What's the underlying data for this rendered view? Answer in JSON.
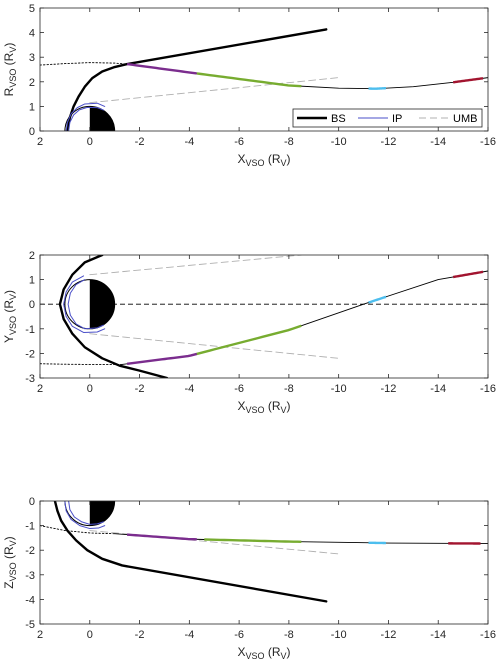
{
  "chart_data": [
    {
      "id": "panel-r",
      "type": "line",
      "xlabel": {
        "main": "X",
        "sub": "VSO",
        "unit_main": " (R",
        "unit_sub": "V",
        "close": ")"
      },
      "ylabel": {
        "main": "R",
        "sub": "VSO",
        "unit_main": " (R",
        "unit_sub": "V",
        "close": ")"
      },
      "xlim": [
        2,
        -16
      ],
      "ylim": [
        0,
        5
      ],
      "xticks": [
        2,
        0,
        -2,
        -4,
        -6,
        -8,
        -10,
        -12,
        -14,
        -16
      ],
      "yticks": [
        0,
        1,
        2,
        3,
        4,
        5
      ],
      "ytick_labels": [
        "0",
        "1",
        "2",
        "3",
        "4",
        "5"
      ],
      "planet": "upper-half",
      "legend": {
        "position": "bottom-right",
        "entries": [
          {
            "label": "BS",
            "style": "bow-shock"
          },
          {
            "label": "IP",
            "style": "ionopause"
          },
          {
            "label": "UMB",
            "style": "umb"
          }
        ]
      },
      "series": [
        {
          "role": "bow-shock",
          "points": [
            [
              0.9,
              0
            ],
            [
              0.87,
              0.2
            ],
            [
              0.8,
              0.55
            ],
            [
              0.65,
              1.0
            ],
            [
              0.45,
              1.4
            ],
            [
              0.2,
              1.8
            ],
            [
              -0.1,
              2.15
            ],
            [
              -0.5,
              2.42
            ],
            [
              -1.0,
              2.6
            ],
            [
              -1.5,
              2.72
            ],
            [
              -9.5,
              4.13
            ]
          ]
        },
        {
          "role": "bow-shock-extension",
          "points": [
            [
              2,
              2.68
            ],
            [
              1.0,
              2.74
            ],
            [
              0,
              2.78
            ],
            [
              -1.0,
              2.76
            ],
            [
              -1.5,
              2.72
            ]
          ]
        },
        {
          "role": "ionopause",
          "points": [
            [
              0.95,
              0
            ],
            [
              0.9,
              0.35
            ],
            [
              0.75,
              0.7
            ],
            [
              0.5,
              0.95
            ],
            [
              0.2,
              1.1
            ],
            [
              -0.3,
              1.13
            ],
            [
              -0.6,
              1.0
            ]
          ]
        },
        {
          "role": "ionopause-inner",
          "points": [
            [
              0.85,
              0
            ],
            [
              0.8,
              0.35
            ],
            [
              0.65,
              0.65
            ],
            [
              0.42,
              0.86
            ],
            [
              0.1,
              0.96
            ],
            [
              -0.3,
              0.95
            ],
            [
              -0.55,
              0.85
            ]
          ]
        },
        {
          "role": "umb",
          "points": [
            [
              0,
              1.15
            ],
            [
              -10,
              2.17
            ]
          ]
        },
        {
          "role": "trajectory",
          "points": [
            [
              -1.5,
              2.72
            ],
            [
              -4,
              2.38
            ],
            [
              -8,
              1.85
            ],
            [
              -10,
              1.74
            ],
            [
              -11.5,
              1.72
            ],
            [
              -13,
              1.8
            ],
            [
              -14.6,
              1.98
            ],
            [
              -16,
              2.17
            ]
          ]
        }
      ],
      "segments": [
        {
          "role": "purple",
          "color": "#7b2d8e",
          "x_range": [
            -1.5,
            -4.3
          ]
        },
        {
          "role": "green",
          "color": "#77ac30",
          "x_range": [
            -4.3,
            -8.5
          ]
        },
        {
          "role": "cyan",
          "color": "#4dbeee",
          "x_range": [
            -11.2,
            -11.9
          ]
        },
        {
          "role": "red",
          "color": "#a2142f",
          "x_range": [
            -14.6,
            -15.8
          ]
        }
      ]
    },
    {
      "id": "panel-y",
      "type": "line",
      "xlabel": {
        "main": "X",
        "sub": "VSO",
        "unit_main": " (R",
        "unit_sub": "V",
        "close": ")"
      },
      "ylabel": {
        "main": "Y",
        "sub": "VSO",
        "unit_main": " (R",
        "unit_sub": "V",
        "close": ")"
      },
      "xlim": [
        2,
        -16
      ],
      "ylim": [
        -3,
        2
      ],
      "xticks": [
        2,
        0,
        -2,
        -4,
        -6,
        -8,
        -10,
        -12,
        -14,
        -16
      ],
      "yticks": [
        -3,
        -2,
        -1,
        0,
        1,
        2
      ],
      "ytick_labels": [
        "-3",
        "-2",
        "-1",
        "0",
        "1",
        "2"
      ],
      "planet": "left-dark-right-light",
      "zero_line": true,
      "series": [
        {
          "role": "bow-shock",
          "points": [
            [
              -0.5,
              2.0
            ],
            [
              0.2,
              1.7
            ],
            [
              0.7,
              1.2
            ],
            [
              1.05,
              0.6
            ],
            [
              1.2,
              0
            ],
            [
              1.05,
              -0.6
            ],
            [
              0.7,
              -1.2
            ],
            [
              0.2,
              -1.75
            ],
            [
              -0.5,
              -2.2
            ],
            [
              -1.2,
              -2.5
            ],
            [
              -2.0,
              -2.7
            ],
            [
              -3.1,
              -3.0
            ]
          ]
        },
        {
          "role": "bow-shock-extension",
          "points": [
            [
              2,
              -2.42
            ],
            [
              1.0,
              -2.44
            ],
            [
              0,
              -2.45
            ],
            [
              -1.0,
              -2.45
            ],
            [
              -1.3,
              -2.45
            ]
          ]
        },
        {
          "role": "ionopause",
          "points": [
            [
              0.25,
              1.15
            ],
            [
              0.7,
              0.9
            ],
            [
              0.95,
              0.5
            ],
            [
              1.05,
              0
            ],
            [
              0.95,
              -0.5
            ],
            [
              0.7,
              -0.9
            ],
            [
              0.25,
              -1.15
            ],
            [
              -0.3,
              -1.13
            ],
            [
              -0.6,
              -1.0
            ]
          ]
        },
        {
          "role": "ionopause-inner",
          "points": [
            [
              0.2,
              1.0
            ],
            [
              0.55,
              0.8
            ],
            [
              0.78,
              0.45
            ],
            [
              0.87,
              0
            ],
            [
              0.78,
              -0.45
            ],
            [
              0.55,
              -0.8
            ],
            [
              0.2,
              -1.0
            ],
            [
              -0.3,
              -0.96
            ],
            [
              -0.55,
              -0.85
            ]
          ]
        },
        {
          "role": "umb",
          "points": [
            [
              0,
              -1.2
            ],
            [
              -10,
              -2.2
            ]
          ]
        },
        {
          "role": "umb",
          "points": [
            [
              0,
              1.2
            ],
            [
              -8.5,
              2.0
            ]
          ]
        },
        {
          "role": "trajectory",
          "points": [
            [
              -1.3,
              -2.45
            ],
            [
              -4,
              -2.1
            ],
            [
              -8,
              -1.05
            ],
            [
              -11,
              0
            ],
            [
              -14,
              1.0
            ],
            [
              -16,
              1.35
            ]
          ]
        }
      ],
      "segments": [
        {
          "role": "purple",
          "color": "#7b2d8e",
          "x_range": [
            -1.5,
            -4.3
          ]
        },
        {
          "role": "green",
          "color": "#77ac30",
          "x_range": [
            -4.3,
            -8.5
          ]
        },
        {
          "role": "cyan",
          "color": "#4dbeee",
          "x_range": [
            -11.2,
            -11.9
          ]
        },
        {
          "role": "red",
          "color": "#a2142f",
          "x_range": [
            -14.6,
            -15.8
          ]
        }
      ]
    },
    {
      "id": "panel-z",
      "type": "line",
      "xlabel": {
        "main": "X",
        "sub": "VSO",
        "unit_main": " (R",
        "unit_sub": "V",
        "close": ")"
      },
      "ylabel": {
        "main": "Z",
        "sub": "VSO",
        "unit_main": " (R",
        "unit_sub": "V",
        "close": ")"
      },
      "xlim": [
        2,
        -16
      ],
      "ylim": [
        -5,
        0
      ],
      "xticks": [
        2,
        0,
        -2,
        -4,
        -6,
        -8,
        -10,
        -12,
        -14,
        -16
      ],
      "yticks": [
        0,
        -1,
        -2,
        -3,
        -4,
        -5
      ],
      "ytick_labels": [
        "0",
        "-1",
        "-2",
        "-3",
        "-4",
        "-5"
      ],
      "planet": "lower-half",
      "series": [
        {
          "role": "bow-shock",
          "points": [
            [
              1.4,
              0
            ],
            [
              1.3,
              -0.4
            ],
            [
              1.15,
              -0.8
            ],
            [
              0.9,
              -1.2
            ],
            [
              0.55,
              -1.6
            ],
            [
              0.1,
              -2.0
            ],
            [
              -0.5,
              -2.35
            ],
            [
              -1.3,
              -2.62
            ],
            [
              -9.5,
              -4.08
            ]
          ]
        },
        {
          "role": "bow-shock-extension",
          "points": [
            [
              2,
              -1.0
            ],
            [
              1.0,
              -1.2
            ],
            [
              0,
              -1.3
            ],
            [
              -1.0,
              -1.33
            ]
          ]
        },
        {
          "role": "ionopause",
          "points": [
            [
              1.0,
              0
            ],
            [
              0.95,
              -0.4
            ],
            [
              0.75,
              -0.75
            ],
            [
              0.4,
              -1.0
            ],
            [
              0,
              -1.12
            ],
            [
              -0.35,
              -1.1
            ],
            [
              -0.6,
              -1.0
            ]
          ]
        },
        {
          "role": "ionopause-inner",
          "points": [
            [
              0.85,
              0
            ],
            [
              0.8,
              -0.35
            ],
            [
              0.62,
              -0.65
            ],
            [
              0.32,
              -0.85
            ],
            [
              0,
              -0.95
            ],
            [
              -0.3,
              -0.93
            ],
            [
              -0.55,
              -0.85
            ]
          ]
        },
        {
          "role": "umb",
          "points": [
            [
              0,
              -1.2
            ],
            [
              -10,
              -2.15
            ]
          ]
        },
        {
          "role": "trajectory",
          "points": [
            [
              -1.0,
              -1.33
            ],
            [
              -4,
              -1.55
            ],
            [
              -8,
              -1.65
            ],
            [
              -12,
              -1.71
            ],
            [
              -16,
              -1.73
            ]
          ]
        }
      ],
      "segments": [
        {
          "role": "purple",
          "color": "#7b2d8e",
          "x_range": [
            -1.5,
            -4.3
          ]
        },
        {
          "role": "green",
          "color": "#77ac30",
          "x_range": [
            -4.6,
            -8.5
          ]
        },
        {
          "role": "cyan",
          "color": "#4dbeee",
          "x_range": [
            -11.2,
            -11.9
          ]
        },
        {
          "role": "red",
          "color": "#a2142f",
          "x_range": [
            -14.4,
            -15.7
          ]
        }
      ]
    }
  ]
}
